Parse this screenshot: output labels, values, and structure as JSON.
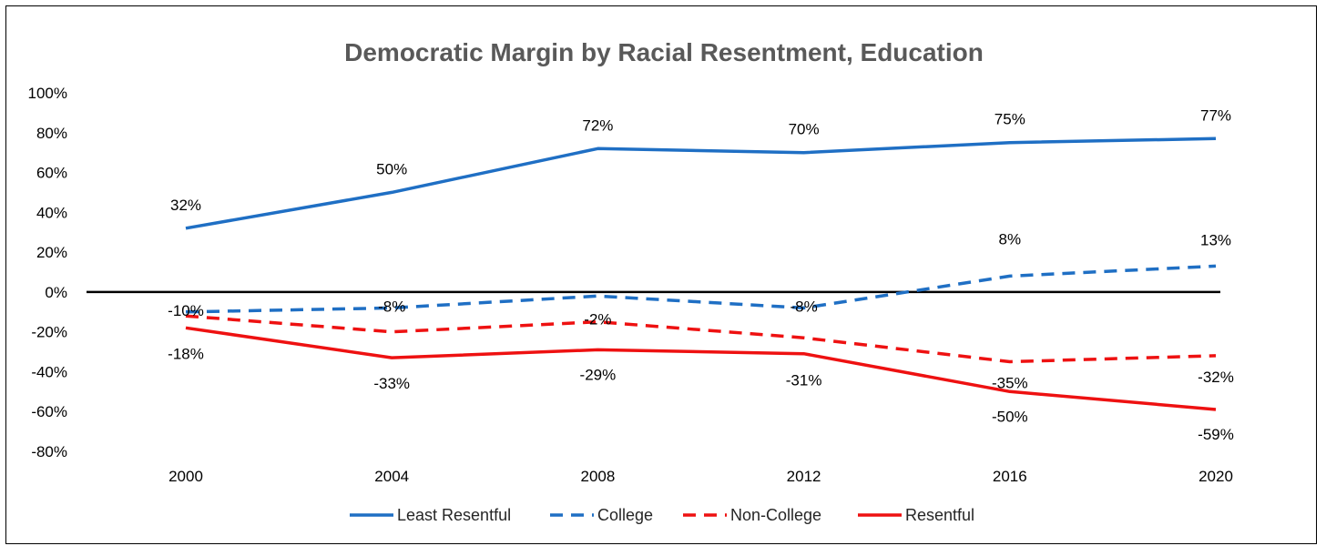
{
  "chart_data": {
    "type": "line",
    "title": "Democratic Margin by Racial Resentment, Education",
    "xlabel": "",
    "ylabel": "",
    "x": [
      "2000",
      "2004",
      "2008",
      "2012",
      "2016",
      "2020"
    ],
    "ylim": [
      -80,
      100
    ],
    "yticks": [
      "100%",
      "80%",
      "60%",
      "40%",
      "20%",
      "0%",
      "-20%",
      "-40%",
      "-60%",
      "-80%"
    ],
    "grid": false,
    "legend_position": "bottom",
    "series": [
      {
        "name": "Least Resentful",
        "color": "#1f6fc4",
        "dash": "solid",
        "values": [
          32,
          50,
          72,
          70,
          75,
          77
        ],
        "labels": [
          "32%",
          "50%",
          "72%",
          "70%",
          "75%",
          "77%"
        ]
      },
      {
        "name": "College",
        "color": "#1f6fc4",
        "dash": "dashed",
        "values": [
          -10,
          -8,
          -2,
          -8,
          8,
          13
        ],
        "labels": [
          "-10%",
          "-8%",
          "-2%",
          "-8%",
          "8%",
          "13%"
        ]
      },
      {
        "name": "Non-College",
        "color": "#ee1111",
        "dash": "dashed",
        "values": [
          -12,
          -20,
          -15,
          -23,
          -35,
          -32
        ],
        "labels": [
          "",
          "",
          "",
          "",
          "-35%",
          "-32%"
        ]
      },
      {
        "name": "Resentful",
        "color": "#ee1111",
        "dash": "solid",
        "values": [
          -18,
          -33,
          -29,
          -31,
          -50,
          -59
        ],
        "labels": [
          "-18%",
          "-33%",
          "-29%",
          "-31%",
          "-50%",
          "-59%"
        ]
      }
    ]
  }
}
